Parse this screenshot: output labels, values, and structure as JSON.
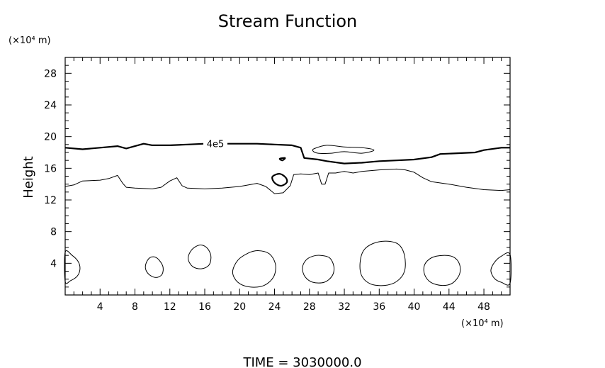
{
  "chart_data": {
    "type": "contour",
    "title": "Stream Function",
    "ylabel": "Height",
    "y_unit": "(×10⁴ m)",
    "x_unit": "(×10⁴ m)",
    "xlim": [
      0,
      51
    ],
    "ylim": [
      0,
      30
    ],
    "x_ticks": [
      4,
      8,
      12,
      16,
      20,
      24,
      28,
      32,
      36,
      40,
      44,
      48
    ],
    "y_ticks": [
      4,
      8,
      12,
      16,
      20,
      24,
      28
    ],
    "contour_label": "4e5",
    "footer": "TIME  =  3030000.0",
    "contours": [
      {
        "name": "labeled-contour",
        "label": "4e5",
        "bold": true,
        "closed": false,
        "points": [
          [
            0,
            18.6
          ],
          [
            2,
            18.4
          ],
          [
            4,
            18.6
          ],
          [
            6,
            18.8
          ],
          [
            7,
            18.5
          ],
          [
            8,
            18.8
          ],
          [
            9,
            19.1
          ],
          [
            10,
            18.9
          ],
          [
            12,
            18.9
          ],
          [
            14,
            19.0
          ],
          [
            16,
            19.1
          ],
          [
            18,
            19.1
          ],
          [
            20,
            19.1
          ],
          [
            22,
            19.1
          ],
          [
            24,
            19.0
          ],
          [
            26,
            18.9
          ],
          [
            27,
            18.6
          ],
          [
            27.4,
            17.3
          ],
          [
            29,
            17.1
          ],
          [
            30,
            16.9
          ],
          [
            32,
            16.6
          ],
          [
            34,
            16.7
          ],
          [
            36,
            16.9
          ],
          [
            38,
            17.0
          ],
          [
            40,
            17.1
          ],
          [
            42,
            17.4
          ],
          [
            43,
            17.8
          ],
          [
            45,
            17.9
          ],
          [
            47,
            18.0
          ],
          [
            48,
            18.3
          ],
          [
            50,
            18.6
          ],
          [
            51,
            18.6
          ]
        ]
      },
      {
        "name": "mid-level-contour",
        "bold": false,
        "closed": false,
        "points": [
          [
            0,
            13.7
          ],
          [
            1,
            13.9
          ],
          [
            2,
            14.4
          ],
          [
            4,
            14.5
          ],
          [
            5,
            14.7
          ],
          [
            6,
            15.1
          ],
          [
            6.6,
            14.1
          ],
          [
            7,
            13.6
          ],
          [
            8,
            13.5
          ],
          [
            10,
            13.4
          ],
          [
            11,
            13.6
          ],
          [
            12,
            14.4
          ],
          [
            12.8,
            14.8
          ],
          [
            13.4,
            13.8
          ],
          [
            14,
            13.5
          ],
          [
            16,
            13.4
          ],
          [
            18,
            13.5
          ],
          [
            20,
            13.7
          ],
          [
            22,
            14.1
          ],
          [
            23,
            13.7
          ],
          [
            24,
            12.8
          ],
          [
            25,
            12.9
          ],
          [
            25.8,
            13.8
          ],
          [
            26.2,
            15.2
          ],
          [
            27,
            15.3
          ],
          [
            28,
            15.2
          ],
          [
            29,
            15.4
          ],
          [
            29.4,
            14.0
          ],
          [
            29.8,
            14.0
          ],
          [
            30.2,
            15.4
          ],
          [
            31,
            15.4
          ],
          [
            32,
            15.6
          ],
          [
            33,
            15.4
          ],
          [
            34,
            15.6
          ],
          [
            36,
            15.8
          ],
          [
            38,
            15.9
          ],
          [
            39,
            15.8
          ],
          [
            40,
            15.5
          ],
          [
            41,
            14.8
          ],
          [
            42,
            14.3
          ],
          [
            44,
            14.0
          ],
          [
            46,
            13.6
          ],
          [
            48,
            13.3
          ],
          [
            50,
            13.2
          ],
          [
            51,
            13.3
          ]
        ]
      },
      {
        "name": "upper-cell",
        "bold": false,
        "closed": true,
        "points": [
          [
            28.6,
            18.5
          ],
          [
            30,
            18.9
          ],
          [
            32,
            18.7
          ],
          [
            34,
            18.6
          ],
          [
            35.4,
            18.3
          ],
          [
            34,
            17.9
          ],
          [
            32,
            18.1
          ],
          [
            30.5,
            17.9
          ],
          [
            29,
            17.9
          ],
          [
            28.4,
            18.2
          ]
        ]
      },
      {
        "name": "mid-cell",
        "bold": true,
        "closed": true,
        "points": [
          [
            23.8,
            15.0
          ],
          [
            24.6,
            15.3
          ],
          [
            25.3,
            14.8
          ],
          [
            25.4,
            14.2
          ],
          [
            24.8,
            13.8
          ],
          [
            24.2,
            14.0
          ],
          [
            23.8,
            14.5
          ]
        ]
      },
      {
        "name": "small-dot",
        "bold": true,
        "closed": true,
        "points": [
          [
            24.6,
            17.2
          ],
          [
            25.2,
            17.3
          ],
          [
            24.9,
            17.0
          ]
        ]
      },
      {
        "name": "bottom-cell-1",
        "bold": false,
        "closed": true,
        "points": [
          [
            0,
            5.4
          ],
          [
            0.8,
            5.0
          ],
          [
            1.5,
            4.2
          ],
          [
            1.7,
            3.3
          ],
          [
            1.4,
            2.4
          ],
          [
            0.6,
            1.8
          ],
          [
            0,
            1.7
          ]
        ]
      },
      {
        "name": "bottom-cell-2",
        "bold": false,
        "closed": true,
        "points": [
          [
            9.9,
            4.8
          ],
          [
            10.6,
            4.6
          ],
          [
            11.2,
            3.6
          ],
          [
            11.1,
            2.6
          ],
          [
            10.4,
            2.2
          ],
          [
            9.6,
            2.6
          ],
          [
            9.2,
            3.4
          ],
          [
            9.4,
            4.3
          ]
        ]
      },
      {
        "name": "bottom-cell-3",
        "bold": false,
        "closed": true,
        "points": [
          [
            15.4,
            6.3
          ],
          [
            16.2,
            6.0
          ],
          [
            16.7,
            5.0
          ],
          [
            16.5,
            3.8
          ],
          [
            15.6,
            3.3
          ],
          [
            14.6,
            3.6
          ],
          [
            14.1,
            4.6
          ],
          [
            14.5,
            5.7
          ]
        ]
      },
      {
        "name": "bottom-cell-4",
        "bold": false,
        "closed": true,
        "points": [
          [
            22.1,
            5.6
          ],
          [
            23.4,
            5.2
          ],
          [
            24.1,
            3.9
          ],
          [
            23.9,
            2.3
          ],
          [
            22.8,
            1.2
          ],
          [
            21.2,
            1.0
          ],
          [
            19.8,
            1.6
          ],
          [
            19.2,
            2.9
          ],
          [
            19.8,
            4.4
          ],
          [
            21,
            5.3
          ]
        ]
      },
      {
        "name": "bottom-cell-5",
        "bold": false,
        "closed": true,
        "points": [
          [
            29.3,
            5.0
          ],
          [
            30.3,
            4.7
          ],
          [
            30.8,
            3.6
          ],
          [
            30.6,
            2.4
          ],
          [
            29.7,
            1.6
          ],
          [
            28.4,
            1.6
          ],
          [
            27.5,
            2.3
          ],
          [
            27.2,
            3.4
          ],
          [
            27.6,
            4.4
          ],
          [
            28.4,
            4.9
          ]
        ]
      },
      {
        "name": "bottom-cell-6",
        "bold": false,
        "closed": true,
        "points": [
          [
            36.8,
            6.8
          ],
          [
            38.2,
            6.4
          ],
          [
            38.9,
            5.0
          ],
          [
            38.9,
            3.0
          ],
          [
            38.0,
            1.7
          ],
          [
            36.6,
            1.2
          ],
          [
            35.0,
            1.4
          ],
          [
            34.0,
            2.4
          ],
          [
            33.8,
            4.0
          ],
          [
            34.2,
            5.6
          ],
          [
            35.3,
            6.5
          ]
        ]
      },
      {
        "name": "bottom-cell-7",
        "bold": false,
        "closed": true,
        "points": [
          [
            43.3,
            5.0
          ],
          [
            44.5,
            4.8
          ],
          [
            45.2,
            3.9
          ],
          [
            45.2,
            2.6
          ],
          [
            44.4,
            1.5
          ],
          [
            43.2,
            1.2
          ],
          [
            41.9,
            1.6
          ],
          [
            41.2,
            2.6
          ],
          [
            41.2,
            3.8
          ],
          [
            42.0,
            4.7
          ]
        ]
      },
      {
        "name": "bottom-cell-8",
        "bold": false,
        "closed": true,
        "points": [
          [
            51,
            5.1
          ],
          [
            50.0,
            4.9
          ],
          [
            49.2,
            4.1
          ],
          [
            48.8,
            3.1
          ],
          [
            49.2,
            2.1
          ],
          [
            50.0,
            1.6
          ],
          [
            51,
            1.5
          ]
        ]
      }
    ]
  }
}
